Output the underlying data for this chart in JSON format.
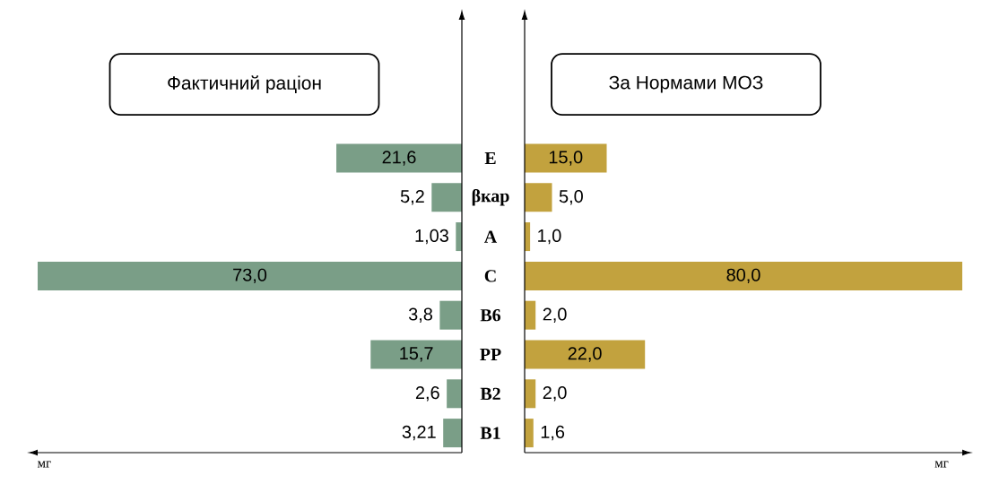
{
  "chart_data": [
    {
      "type": "bar",
      "orientation": "horizontal",
      "title": "Фактичний раціон",
      "xlabel": "мг",
      "categories": [
        "E",
        "βкар",
        "A",
        "C",
        "B6",
        "PP",
        "B2",
        "B1"
      ],
      "values": [
        21.6,
        5.2,
        1.03,
        73.0,
        3.8,
        15.7,
        2.6,
        3.21
      ],
      "value_labels": [
        "21,6",
        "5,2",
        "1,03",
        "73,0",
        "3,8",
        "15,7",
        "2,6",
        "3,21"
      ],
      "color": "#7a9e87",
      "tick_labels": "y"
    },
    {
      "type": "bar",
      "orientation": "horizontal",
      "title": "За Нормами МОЗ",
      "xlabel": "мг",
      "values": [
        15.0,
        5.0,
        1.0,
        80.0,
        2.0,
        22.0,
        2.0,
        1.6
      ],
      "value_labels": [
        "15,0",
        "5,0",
        "1,0",
        "80,0",
        "2,0",
        "22,0",
        "2,0",
        "1,6"
      ],
      "categories": [
        null,
        null,
        null,
        null,
        null,
        null,
        null,
        null
      ],
      "color": "#c2a23e"
    }
  ]
}
